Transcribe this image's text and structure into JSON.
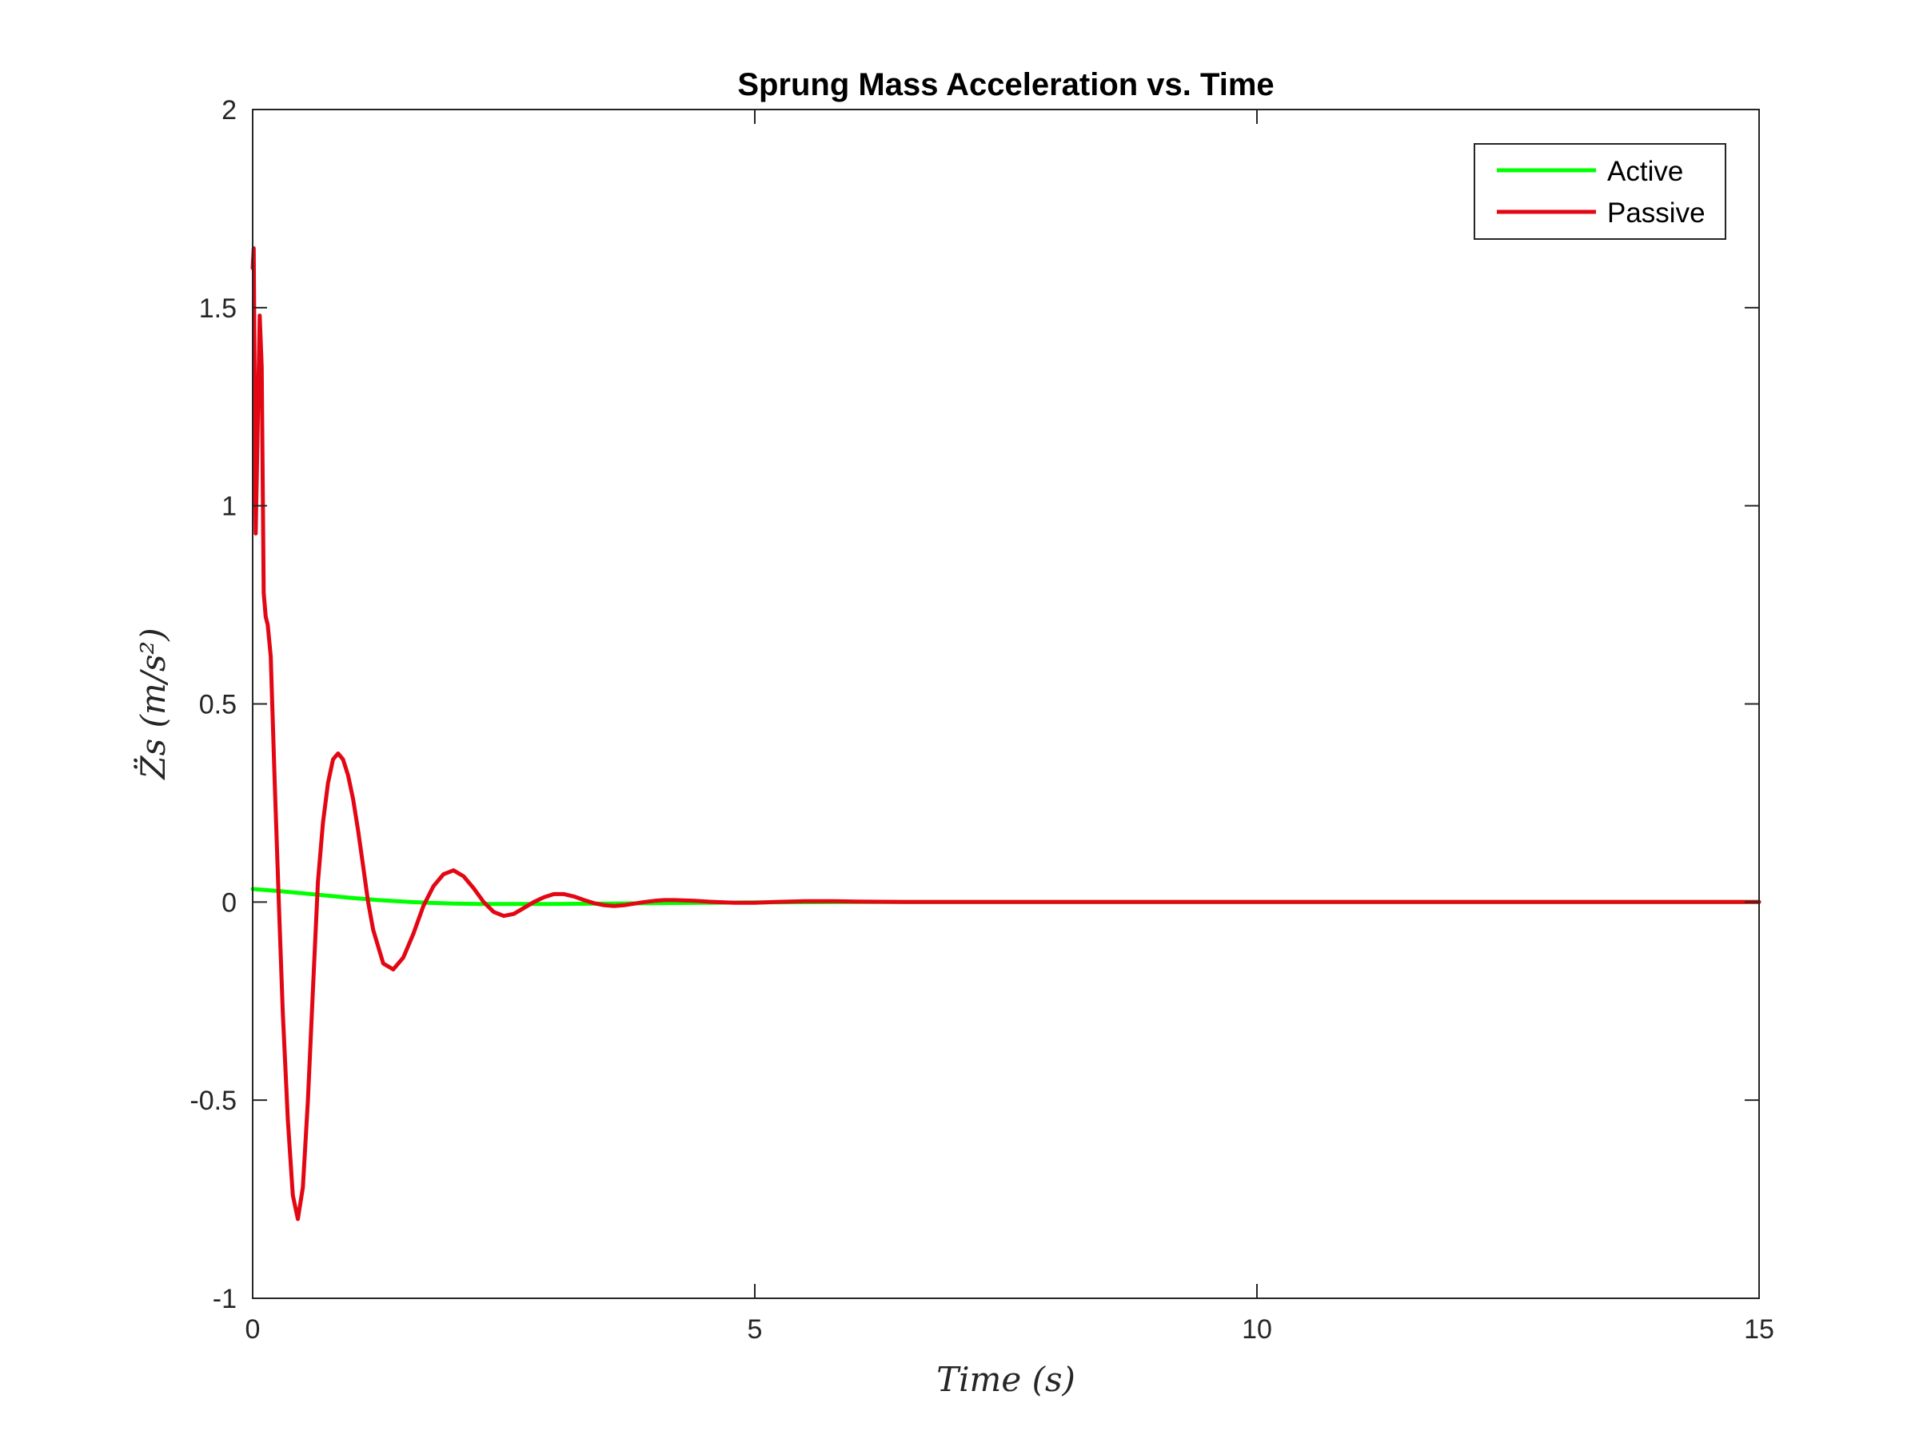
{
  "chart_data": {
    "type": "line",
    "title": "Sprung Mass Acceleration vs. Time",
    "xlabel": "Time (s)",
    "ylabel": "Z̈s (m/s²)",
    "xlim": [
      0,
      15
    ],
    "ylim": [
      -1,
      2
    ],
    "xticks": [
      0,
      5,
      10,
      15
    ],
    "xtick_labels": [
      "0",
      "5",
      "10",
      "15"
    ],
    "yticks": [
      -1,
      -0.5,
      0,
      0.5,
      1,
      1.5,
      2
    ],
    "ytick_labels": [
      "-1",
      "-0.5",
      "0",
      "0.5",
      "1",
      "1.5",
      "2"
    ],
    "grid": false,
    "legend_position": "top-right",
    "series": [
      {
        "name": "Active",
        "color": "#00ff00",
        "x": [
          0,
          0.25,
          0.5,
          0.75,
          1.0,
          1.25,
          1.5,
          1.75,
          2.0,
          2.25,
          2.5,
          3.0,
          3.5,
          4.0,
          4.5,
          5.0,
          6.0,
          8.0,
          10.0,
          12.0,
          15.0
        ],
        "y": [
          0.033,
          0.028,
          0.022,
          0.016,
          0.01,
          0.005,
          0.001,
          -0.002,
          -0.004,
          -0.005,
          -0.005,
          -0.005,
          -0.004,
          -0.003,
          -0.002,
          -0.001,
          0,
          0,
          0,
          0,
          0
        ]
      },
      {
        "name": "Passive",
        "color": "#e30613",
        "x": [
          0,
          0.01,
          0.03,
          0.05,
          0.07,
          0.09,
          0.11,
          0.13,
          0.15,
          0.18,
          0.22,
          0.26,
          0.3,
          0.35,
          0.4,
          0.45,
          0.5,
          0.55,
          0.6,
          0.65,
          0.7,
          0.75,
          0.8,
          0.85,
          0.9,
          0.95,
          1.0,
          1.05,
          1.1,
          1.15,
          1.2,
          1.3,
          1.4,
          1.5,
          1.6,
          1.7,
          1.8,
          1.9,
          2.0,
          2.1,
          2.2,
          2.3,
          2.4,
          2.5,
          2.6,
          2.7,
          2.8,
          2.9,
          3.0,
          3.1,
          3.2,
          3.3,
          3.4,
          3.5,
          3.6,
          3.7,
          3.8,
          3.9,
          4.0,
          4.1,
          4.2,
          4.4,
          4.6,
          4.8,
          5.0,
          5.2,
          5.5,
          5.8,
          6.0,
          6.5,
          7.0,
          8.0,
          10.0,
          12.0,
          15.0
        ],
        "y": [
          1.6,
          1.65,
          0.93,
          1.2,
          1.48,
          1.35,
          0.78,
          0.72,
          0.7,
          0.62,
          0.3,
          0.0,
          -0.28,
          -0.55,
          -0.74,
          -0.8,
          -0.72,
          -0.5,
          -0.22,
          0.05,
          0.2,
          0.3,
          0.36,
          0.375,
          0.36,
          0.32,
          0.26,
          0.18,
          0.09,
          0.0,
          -0.07,
          -0.155,
          -0.17,
          -0.14,
          -0.08,
          -0.01,
          0.04,
          0.07,
          0.08,
          0.065,
          0.035,
          0.0,
          -0.025,
          -0.035,
          -0.03,
          -0.015,
          0.0,
          0.012,
          0.02,
          0.02,
          0.014,
          0.005,
          -0.003,
          -0.008,
          -0.01,
          -0.008,
          -0.004,
          0.0,
          0.003,
          0.005,
          0.005,
          0.003,
          0.0,
          -0.002,
          -0.002,
          0.0,
          0.002,
          0.002,
          0.001,
          0,
          0,
          0,
          0,
          0,
          0
        ]
      }
    ]
  }
}
